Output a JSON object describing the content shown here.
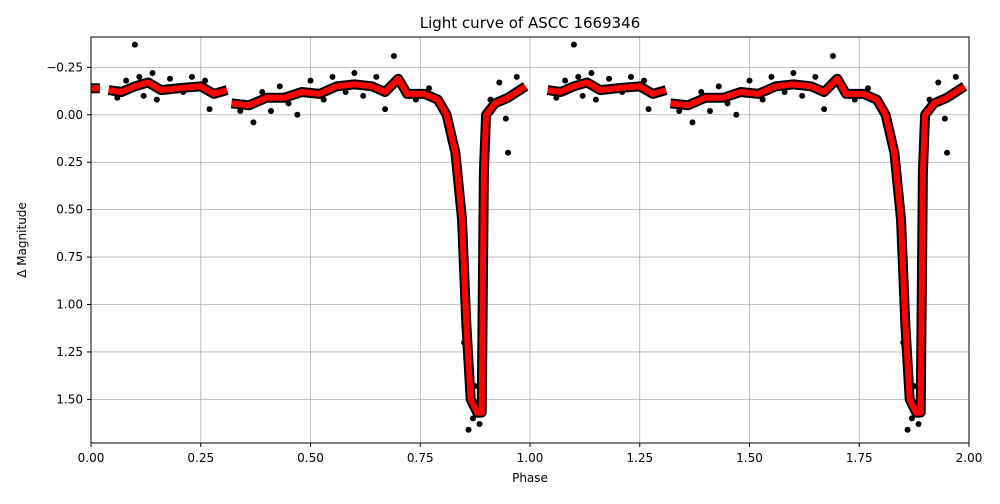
{
  "chart_data": {
    "type": "scatter",
    "title": "Light curve of ASCC 1669346",
    "x_label": "Phase",
    "y_label": "Δ Magnitude",
    "xlim": [
      0,
      2
    ],
    "ylim": [
      -0.41,
      1.73
    ],
    "y_inverted": true,
    "grid": true,
    "xticks": [
      {
        "value": 0,
        "label": "0.00"
      },
      0.25,
      {
        "value": 0.5,
        "label": "0.50"
      },
      0.75,
      {
        "value": 1,
        "label": "1.00"
      },
      1.25,
      {
        "value": 1.5,
        "label": "1.50"
      },
      1.75,
      {
        "value": 2,
        "label": "2.00"
      }
    ],
    "yticks": [
      {
        "value": -0.25,
        "label": "−0.25"
      },
      {
        "value": 0,
        "label": "0.00"
      },
      0.25,
      {
        "value": 0.5,
        "label": "0.50"
      },
      0.75,
      {
        "value": 1,
        "label": "1.00"
      },
      1.25,
      {
        "value": 1.5,
        "label": "1.50"
      }
    ],
    "series": [
      {
        "type": "scatter",
        "color": "#000000",
        "x": [
          0.06,
          0.08,
          0.1,
          0.11,
          0.12,
          0.14,
          0.15,
          0.18,
          0.21,
          0.23,
          0.26,
          0.27,
          0.34,
          0.37,
          0.39,
          0.41,
          0.43,
          0.45,
          0.47,
          0.5,
          0.53,
          0.55,
          0.58,
          0.6,
          0.62,
          0.65,
          0.67,
          0.69,
          0.71,
          0.74,
          0.77,
          0.8,
          0.82,
          0.84,
          0.85,
          0.86,
          0.87,
          0.875,
          0.885,
          0.895,
          0.91,
          0.93,
          0.945,
          0.95,
          0.97,
          1.06,
          1.08,
          1.1,
          1.11,
          1.12,
          1.14,
          1.15,
          1.18,
          1.21,
          1.23,
          1.26,
          1.27,
          1.34,
          1.37,
          1.39,
          1.41,
          1.43,
          1.45,
          1.47,
          1.5,
          1.53,
          1.55,
          1.58,
          1.6,
          1.62,
          1.65,
          1.67,
          1.69,
          1.71,
          1.74,
          1.77,
          1.8,
          1.82,
          1.84,
          1.85,
          1.86,
          1.87,
          1.875,
          1.885,
          1.895,
          1.91,
          1.93,
          1.945,
          1.95,
          1.97
        ],
        "y": [
          -0.09,
          -0.18,
          -0.37,
          -0.2,
          -0.1,
          -0.22,
          -0.08,
          -0.19,
          -0.12,
          -0.2,
          -0.18,
          -0.03,
          -0.02,
          0.04,
          -0.12,
          -0.02,
          -0.15,
          -0.06,
          0.0,
          -0.18,
          -0.08,
          -0.2,
          -0.12,
          -0.22,
          -0.1,
          -0.2,
          -0.03,
          -0.31,
          -0.15,
          -0.08,
          -0.14,
          -0.05,
          0.12,
          0.45,
          1.2,
          1.66,
          1.6,
          1.43,
          1.63,
          0.4,
          -0.08,
          -0.17,
          0.02,
          0.2,
          -0.2,
          -0.09,
          -0.18,
          -0.37,
          -0.2,
          -0.1,
          -0.22,
          -0.08,
          -0.19,
          -0.12,
          -0.2,
          -0.18,
          -0.03,
          -0.02,
          0.04,
          -0.12,
          -0.02,
          -0.15,
          -0.06,
          0.0,
          -0.18,
          -0.08,
          -0.2,
          -0.12,
          -0.22,
          -0.1,
          -0.2,
          -0.03,
          -0.31,
          -0.15,
          -0.08,
          -0.14,
          -0.05,
          0.12,
          0.45,
          1.2,
          1.66,
          1.6,
          1.43,
          1.63,
          0.4,
          -0.08,
          -0.17,
          0.02,
          0.2,
          -0.2
        ]
      },
      {
        "type": "line",
        "color": "#ff0000",
        "x": [
          0.0,
          0.02,
          null,
          0.04,
          0.07,
          0.1,
          0.13,
          0.16,
          0.2,
          0.25,
          0.28,
          0.31,
          null,
          0.32,
          0.36,
          0.4,
          0.44,
          0.48,
          0.52,
          0.56,
          0.6,
          0.64,
          0.67,
          0.7,
          0.72,
          0.76,
          0.79,
          0.81,
          0.83,
          0.845,
          0.855,
          0.865,
          0.88,
          0.89,
          0.895,
          0.9,
          0.92,
          0.95,
          0.97,
          0.99,
          null,
          1.04,
          1.07,
          1.1,
          1.13,
          1.16,
          1.2,
          1.25,
          1.28,
          1.31,
          null,
          1.32,
          1.36,
          1.4,
          1.44,
          1.48,
          1.52,
          1.56,
          1.6,
          1.64,
          1.67,
          1.7,
          1.72,
          1.76,
          1.79,
          1.81,
          1.83,
          1.845,
          1.855,
          1.865,
          1.88,
          1.89,
          1.895,
          1.9,
          1.92,
          1.95,
          1.97,
          1.99
        ],
        "y": [
          -0.14,
          -0.14,
          null,
          -0.13,
          -0.12,
          -0.15,
          -0.17,
          -0.13,
          -0.14,
          -0.15,
          -0.11,
          -0.13,
          null,
          -0.06,
          -0.05,
          -0.09,
          -0.09,
          -0.12,
          -0.11,
          -0.15,
          -0.16,
          -0.15,
          -0.12,
          -0.19,
          -0.11,
          -0.11,
          -0.08,
          0.0,
          0.2,
          0.55,
          1.1,
          1.5,
          1.57,
          1.57,
          0.3,
          0.0,
          -0.06,
          -0.09,
          -0.12,
          -0.15,
          null,
          -0.13,
          -0.12,
          -0.15,
          -0.17,
          -0.13,
          -0.14,
          -0.15,
          -0.11,
          -0.13,
          null,
          -0.06,
          -0.05,
          -0.09,
          -0.09,
          -0.12,
          -0.11,
          -0.15,
          -0.16,
          -0.15,
          -0.12,
          -0.19,
          -0.11,
          -0.11,
          -0.08,
          0.0,
          0.2,
          0.55,
          1.1,
          1.5,
          1.57,
          1.57,
          0.3,
          0.0,
          -0.06,
          -0.09,
          -0.12,
          -0.15
        ]
      }
    ]
  }
}
